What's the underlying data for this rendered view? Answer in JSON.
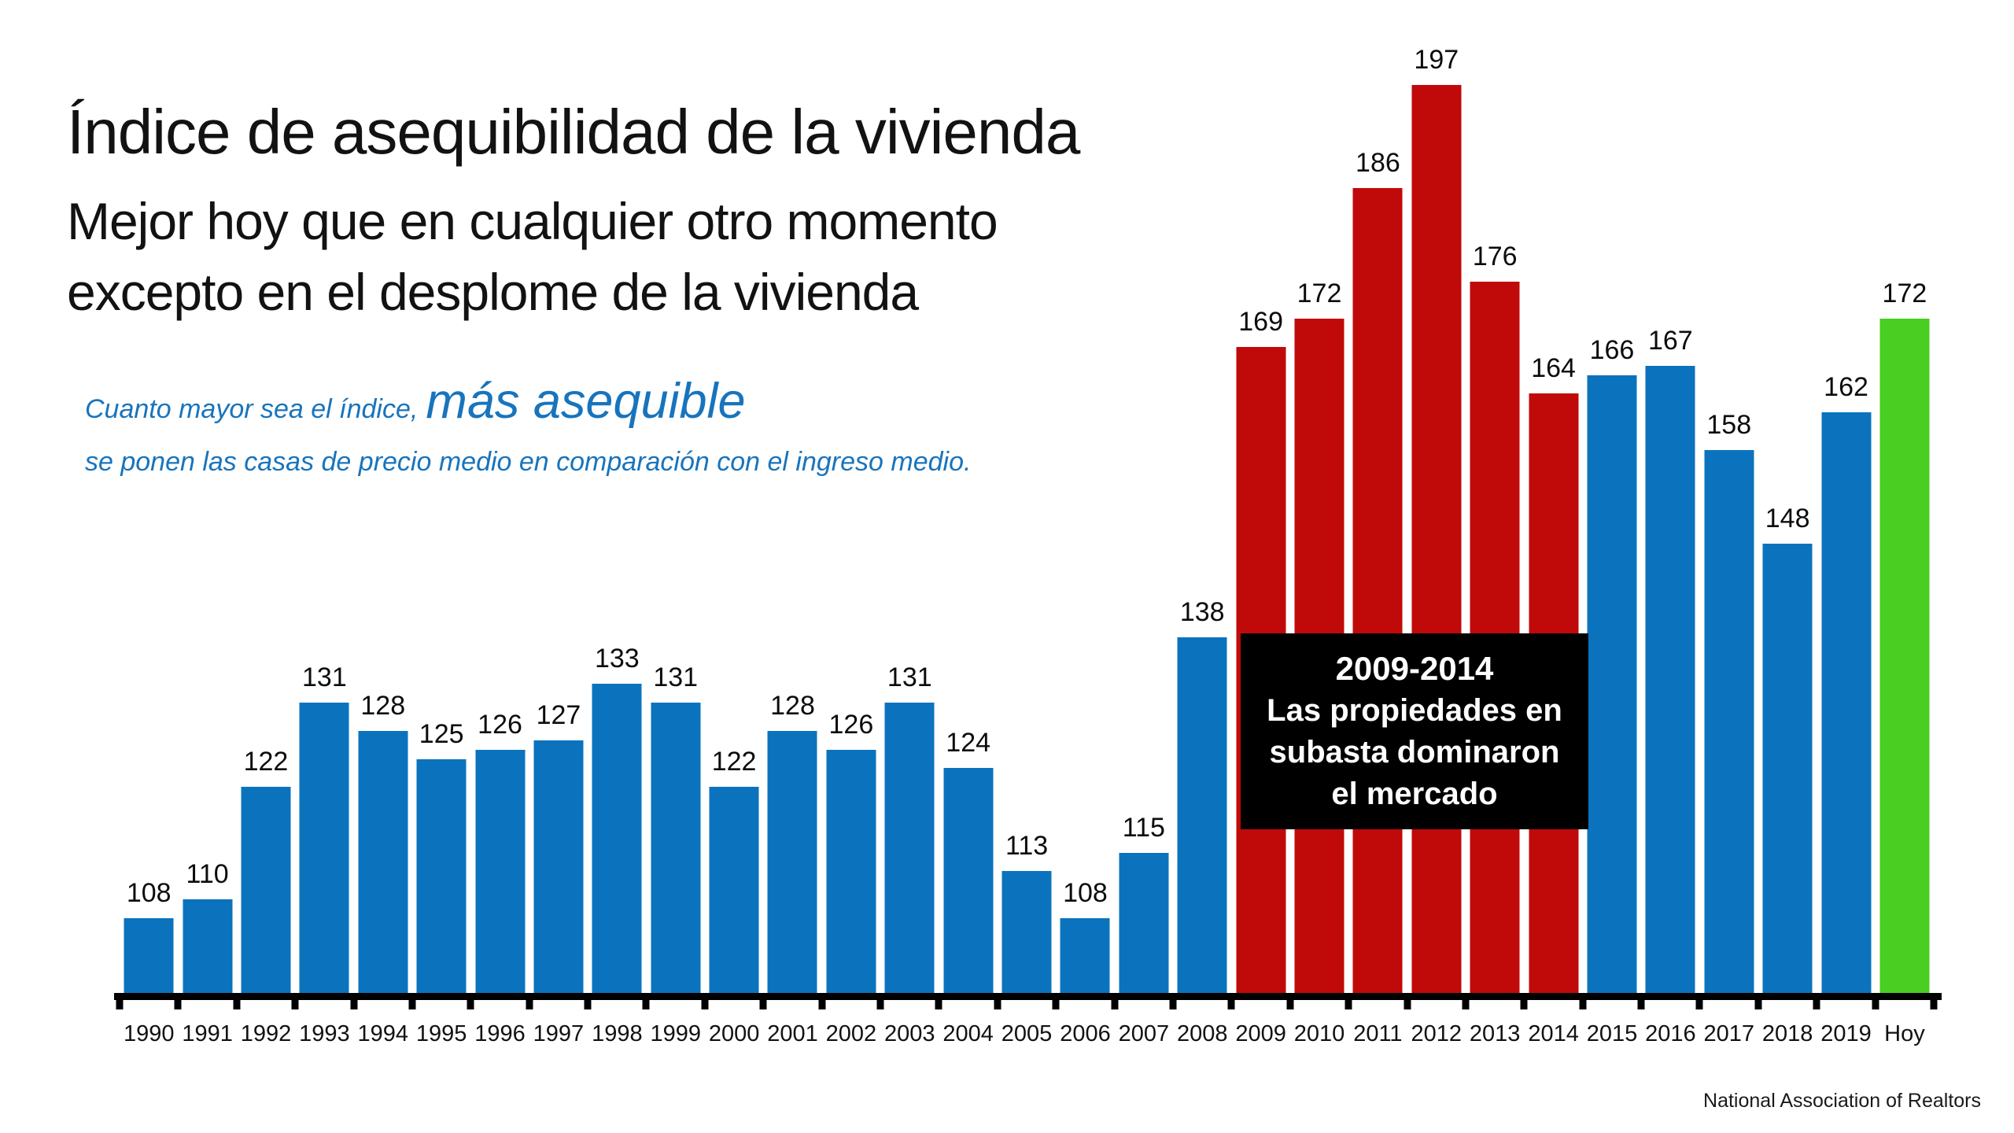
{
  "header": {
    "title": "Índice de asequibilidad de la vivienda",
    "subtitle_line1": "Mejor hoy que en cualquier otro momento",
    "subtitle_line2": "excepto en el desplome de la vivienda"
  },
  "annotation": {
    "prefix": "Cuanto mayor sea el índice,",
    "emphasis": "más asequible",
    "line2": "se ponen las casas de precio medio en comparación con el ingreso medio.",
    "color": "#1874BC"
  },
  "callout": {
    "title": "2009-2014",
    "line1": "Las propiedades en",
    "line2": "subasta dominaron",
    "line3": "el mercado",
    "bg": "#000000",
    "text_color": "#FFFFFF"
  },
  "source": "National Association of Realtors",
  "chart_data": {
    "type": "bar",
    "categories": [
      "1990",
      "1991",
      "1992",
      "1993",
      "1994",
      "1995",
      "1996",
      "1997",
      "1998",
      "1999",
      "2000",
      "2001",
      "2002",
      "2003",
      "2004",
      "2005",
      "2006",
      "2007",
      "2008",
      "2009",
      "2010",
      "2011",
      "2012",
      "2013",
      "2014",
      "2015",
      "2016",
      "2017",
      "2018",
      "2019",
      "Hoy"
    ],
    "values": [
      108,
      110,
      122,
      131,
      128,
      125,
      126,
      127,
      133,
      131,
      122,
      128,
      126,
      131,
      124,
      113,
      108,
      115,
      138,
      169,
      172,
      186,
      197,
      176,
      164,
      166,
      167,
      158,
      148,
      162,
      172
    ],
    "bar_roles": [
      "past",
      "past",
      "past",
      "past",
      "past",
      "past",
      "past",
      "past",
      "past",
      "past",
      "past",
      "past",
      "past",
      "past",
      "past",
      "past",
      "past",
      "past",
      "past",
      "crash",
      "crash",
      "crash",
      "crash",
      "crash",
      "crash",
      "past",
      "past",
      "past",
      "past",
      "past",
      "today"
    ],
    "colors": {
      "past": "#0B73BD",
      "crash": "#C00A0A",
      "today": "#49CE21"
    },
    "ylim": [
      100,
      200
    ],
    "grid": false,
    "value_labels": true,
    "legend": "none",
    "xlabel": "",
    "ylabel": "",
    "title": "Índice de asequibilidad de la vivienda"
  }
}
